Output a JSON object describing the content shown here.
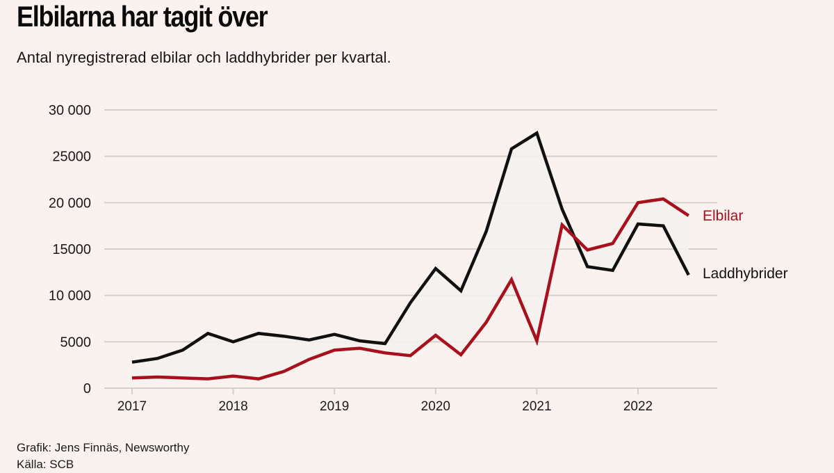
{
  "header": {
    "title": "Elbilarna har tagit över",
    "subtitle": "Antal nyregistrerad elbilar och laddhybrider per kvartal."
  },
  "footer": {
    "credit": "Grafik: Jens Finnäs, Newsworthy",
    "source": "Källa: SCB"
  },
  "colors": {
    "background": "#f9f2ee",
    "elbilar": "#a8101c",
    "laddhybrider": "#111111",
    "gridline": "#d4cfca",
    "fill_between": "#f3f1ee"
  },
  "chart_data": {
    "type": "line",
    "title": "Elbilarna har tagit över",
    "subtitle": "Antal nyregistrerad elbilar och laddhybrider per kvartal.",
    "xlabel": "",
    "ylabel": "",
    "x": [
      "2017Q1",
      "2017Q2",
      "2017Q3",
      "2017Q4",
      "2018Q1",
      "2018Q2",
      "2018Q3",
      "2018Q4",
      "2019Q1",
      "2019Q2",
      "2019Q3",
      "2019Q4",
      "2020Q1",
      "2020Q2",
      "2020Q3",
      "2020Q4",
      "2021Q1",
      "2021Q2",
      "2021Q3",
      "2021Q4",
      "2022Q1",
      "2022Q2",
      "2022Q3"
    ],
    "x_ticks": [
      "2017",
      "2018",
      "2019",
      "2020",
      "2021",
      "2022"
    ],
    "y_ticks": [
      "0",
      "5000",
      "10 000",
      "15000",
      "20 000",
      "25000",
      "30 000"
    ],
    "y_tick_values": [
      0,
      5000,
      10000,
      15000,
      20000,
      25000,
      30000
    ],
    "ylim": [
      0,
      30000
    ],
    "grid": true,
    "legend": "direct labels at line ends (right)",
    "series": [
      {
        "name": "Elbilar",
        "color": "#a8101c",
        "values": [
          1100,
          1200,
          1100,
          1000,
          1300,
          1000,
          1800,
          3100,
          4100,
          4300,
          3800,
          3500,
          5700,
          3600,
          7100,
          11700,
          5100,
          17600,
          14900,
          15600,
          20000,
          20400,
          18600
        ]
      },
      {
        "name": "Laddhybrider",
        "color": "#111111",
        "values": [
          2800,
          3200,
          4100,
          5900,
          5000,
          5900,
          5600,
          5200,
          5800,
          5100,
          4800,
          9200,
          12900,
          10500,
          16900,
          25800,
          27500,
          19300,
          13100,
          12700,
          17700,
          17500,
          12200
        ]
      }
    ]
  }
}
